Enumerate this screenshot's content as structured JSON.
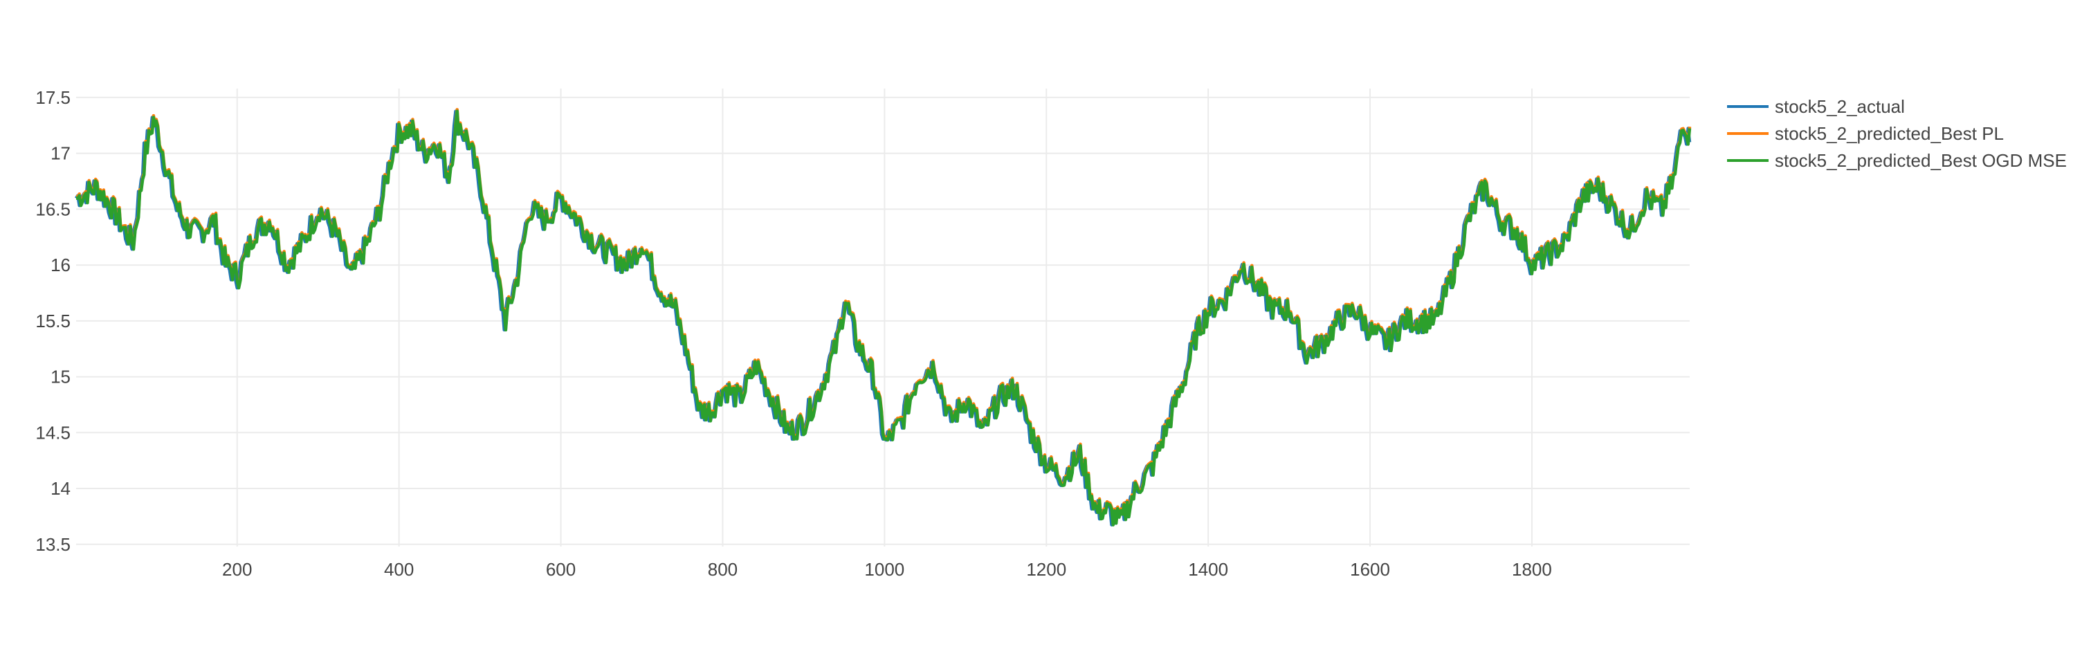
{
  "chart_data": {
    "type": "line",
    "title": "",
    "xlabel": "",
    "ylabel": "",
    "xlim": [
      1,
      1995
    ],
    "ylim": [
      13.48,
      17.58
    ],
    "x_ticks": [
      200,
      400,
      600,
      800,
      1000,
      1200,
      1400,
      1600,
      1800
    ],
    "x_tick_labels": [
      "200",
      "400",
      "600",
      "800",
      "1000",
      "1200",
      "1400",
      "1600",
      "1800"
    ],
    "y_ticks": [
      13.5,
      14,
      14.5,
      15,
      15.5,
      16,
      16.5,
      17,
      17.5
    ],
    "y_tick_labels": [
      "13.5",
      "14",
      "14.5",
      "15",
      "15.5",
      "16",
      "16.5",
      "17",
      "17.5"
    ],
    "grid": true,
    "legend_position": "top-right",
    "series": [
      {
        "name": "stock5_2_actual",
        "color": "#1f77b4"
      },
      {
        "name": "stock5_2_predicted_Best PL",
        "color": "#ff7f0e"
      },
      {
        "name": "stock5_2_predicted_Best OGD MSE",
        "color": "#2ca02c"
      }
    ],
    "x": [
      1,
      25,
      45,
      60,
      70,
      78,
      85,
      95,
      100,
      110,
      125,
      140,
      155,
      170,
      185,
      200,
      220,
      240,
      260,
      280,
      300,
      320,
      340,
      360,
      375,
      390,
      400,
      415,
      430,
      445,
      460,
      470,
      485,
      500,
      515,
      530,
      545,
      560,
      580,
      600,
      620,
      640,
      660,
      680,
      700,
      720,
      740,
      755,
      770,
      785,
      800,
      820,
      840,
      860,
      880,
      900,
      920,
      940,
      950,
      965,
      985,
      1000,
      1020,
      1040,
      1060,
      1080,
      1100,
      1120,
      1140,
      1160,
      1180,
      1200,
      1220,
      1240,
      1260,
      1275,
      1290,
      1310,
      1330,
      1350,
      1370,
      1385,
      1400,
      1420,
      1440,
      1460,
      1480,
      1500,
      1520,
      1540,
      1560,
      1580,
      1600,
      1620,
      1640,
      1660,
      1680,
      1700,
      1720,
      1740,
      1760,
      1780,
      1800,
      1820,
      1840,
      1860,
      1880,
      1900,
      1920,
      1940,
      1960,
      1975,
      1985,
      1995
    ],
    "values": [
      16.6,
      16.7,
      16.5,
      16.3,
      16.2,
      16.6,
      17.0,
      17.3,
      17.2,
      16.9,
      16.5,
      16.3,
      16.3,
      16.4,
      16.0,
      15.9,
      16.3,
      16.4,
      16.0,
      16.2,
      16.5,
      16.3,
      15.9,
      16.2,
      16.5,
      17.0,
      17.2,
      17.2,
      17.0,
      17.1,
      16.8,
      17.3,
      17.1,
      16.7,
      16.1,
      15.5,
      15.9,
      16.5,
      16.4,
      16.6,
      16.4,
      16.2,
      16.1,
      16.0,
      16.2,
      15.8,
      15.6,
      15.2,
      14.7,
      14.7,
      14.9,
      14.8,
      15.1,
      14.8,
      14.5,
      14.6,
      14.9,
      15.3,
      15.7,
      15.3,
      15.0,
      14.4,
      14.6,
      15.0,
      15.1,
      14.6,
      14.8,
      14.5,
      14.8,
      14.9,
      14.5,
      14.2,
      14.1,
      14.3,
      13.8,
      13.8,
      13.7,
      14.0,
      14.2,
      14.6,
      15.0,
      15.4,
      15.6,
      15.7,
      16.0,
      15.8,
      15.6,
      15.6,
      15.2,
      15.3,
      15.5,
      15.6,
      15.4,
      15.3,
      15.5,
      15.5,
      15.5,
      15.9,
      16.4,
      16.7,
      16.4,
      16.3,
      16.0,
      16.1,
      16.2,
      16.6,
      16.7,
      16.5,
      16.3,
      16.6,
      16.5,
      16.8,
      17.3,
      17.1
    ]
  },
  "legend": {
    "items": [
      {
        "label": "stock5_2_actual",
        "color": "#1f77b4"
      },
      {
        "label": "stock5_2_predicted_Best PL",
        "color": "#ff7f0e"
      },
      {
        "label": "stock5_2_predicted_Best OGD MSE",
        "color": "#2ca02c"
      }
    ]
  }
}
